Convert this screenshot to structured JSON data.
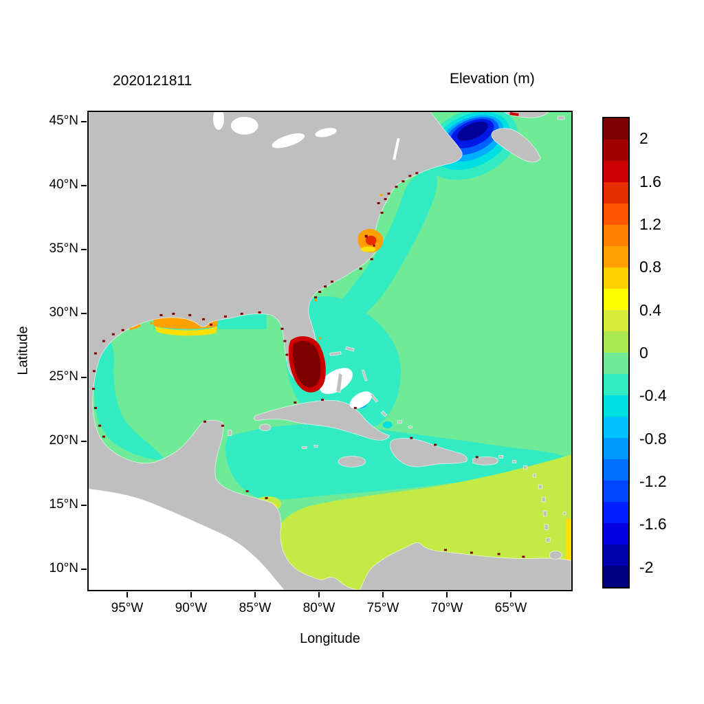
{
  "chart_data": {
    "type": "heatmap",
    "title": "2020121811",
    "colorbar_title": "Elevation (m)",
    "xlabel": "Longitude",
    "ylabel": "Latitude",
    "x_ticks": [
      "95°W",
      "90°W",
      "85°W",
      "80°W",
      "75°W",
      "70°W",
      "65°W"
    ],
    "y_ticks": [
      "45°N",
      "40°N",
      "35°N",
      "30°N",
      "25°N",
      "20°N",
      "15°N",
      "10°N"
    ],
    "x_range": [
      "98°W",
      "61°W"
    ],
    "y_range": [
      "8°N",
      "46°N"
    ],
    "grid": false,
    "colorbar_position": "right",
    "colorbar": {
      "tick_labels": [
        "2",
        "1.6",
        "1.2",
        "0.8",
        "0.4",
        "0",
        "-0.4",
        "-0.8",
        "-1.2",
        "-1.6",
        "-2"
      ],
      "tick_values": [
        2,
        1.6,
        1.2,
        0.8,
        0.4,
        0,
        -0.4,
        -0.8,
        -1.2,
        -1.6,
        -2
      ],
      "level_step_m": 0.2,
      "levels_min_to_max": [
        -2,
        -1.8,
        -1.6,
        -1.4,
        -1.2,
        -1,
        -0.8,
        -0.6,
        -0.4,
        -0.2,
        0,
        0.2,
        0.4,
        0.6,
        0.8,
        1,
        1.2,
        1.4,
        1.6,
        1.8,
        2
      ],
      "band_colors_top_to_bottom": [
        "#7F0000",
        "#A30000",
        "#CC0000",
        "#E62E00",
        "#FF5500",
        "#FF8000",
        "#FFA000",
        "#FFD000",
        "#FFFF00",
        "#D8EB3D",
        "#A9E84F",
        "#6FEA96",
        "#33EBC2",
        "#00E0E0",
        "#00C2FF",
        "#0099FF",
        "#0070FF",
        "#0047FF",
        "#001FFF",
        "#0000E0",
        "#0000AD",
        "#000080"
      ]
    },
    "map_colors": {
      "land": "#BFBFBF",
      "ocean": "#6FEA96",
      "white": "#FFFFFF",
      "turquoise": "#33EBC2",
      "cyan": "#00E0E0",
      "light_blue": "#00AEFF",
      "blue": "#0060FF",
      "deep_blue": "#0018E6",
      "navy": "#000099",
      "yellow_green": "#C4EB45",
      "yellow": "#FFE000",
      "orange": "#FFA000",
      "red_orange": "#E62E00",
      "red": "#CC0000",
      "dark_red": "#7F0000"
    },
    "regions": [
      {
        "region": "open Atlantic (most of domain)",
        "elevation_m": "-0.2 to 0"
      },
      {
        "region": "Gulf of Mexico interior",
        "elevation_m": "-0.2 to 0"
      },
      {
        "region": "Florida Straits / Bahamas / US southeast shelf",
        "elevation_m": "-0.4 to -0.2"
      },
      {
        "region": "central Caribbean band",
        "elevation_m": "-0.4 to -0.2"
      },
      {
        "region": "Gulf of Maine / Bay of Fundy",
        "elevation_m": "-2 and below (field minimum)"
      },
      {
        "region": "south Florida / Florida Bay",
        "elevation_m": "2 and above (field maximum)"
      },
      {
        "region": "Louisiana-Texas shelf fringe",
        "elevation_m": "0.4 to 1.2"
      },
      {
        "region": "Pamlico Sound, North Carolina coast",
        "elevation_m": "0.6 to 1.6"
      },
      {
        "region": "southern Caribbean off South America",
        "elevation_m": "0 to 0.4"
      },
      {
        "region": "southeast corner near 61°W south of 12°N",
        "elevation_m": "0.4 to 1.0"
      },
      {
        "region": "scattered coastal estuary cells along Gulf and east coasts",
        "elevation_m": "1.6 and above"
      }
    ]
  }
}
